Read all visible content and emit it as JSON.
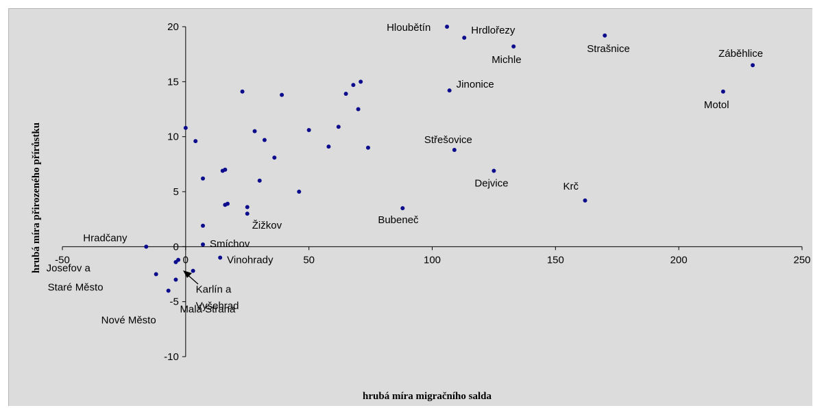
{
  "chart_data": {
    "type": "scatter",
    "title": "",
    "xlabel": "hrubá míra migračního salda",
    "ylabel": "hrubá míra přirozeného přírůstku",
    "xlim": [
      -50,
      250
    ],
    "ylim": [
      -10,
      20
    ],
    "x_ticks": [
      -50,
      0,
      50,
      100,
      150,
      200,
      250
    ],
    "y_ticks": [
      -10,
      -5,
      0,
      5,
      10,
      15,
      20
    ],
    "grid": false,
    "legend": "none",
    "marker_color": "#0c0c8c",
    "points": [
      {
        "x": 106,
        "y": 20,
        "label": "Hloubětín"
      },
      {
        "x": 113,
        "y": 19,
        "label": "Hrdlořezy"
      },
      {
        "x": 133,
        "y": 18.2,
        "label": "Michle"
      },
      {
        "x": 170,
        "y": 19.2,
        "label": "Strašnice"
      },
      {
        "x": 230,
        "y": 16.5,
        "label": "Záběhlice"
      },
      {
        "x": 218,
        "y": 14.1,
        "label": "Motol"
      },
      {
        "x": 107,
        "y": 14.2,
        "label": "Jinonice"
      },
      {
        "x": 109,
        "y": 8.8,
        "label": "Střešovice"
      },
      {
        "x": 125,
        "y": 6.9,
        "label": "Dejvice"
      },
      {
        "x": 162,
        "y": 4.2,
        "label": "Krč"
      },
      {
        "x": 88,
        "y": 3.5,
        "label": "Bubeneč"
      },
      {
        "x": 25,
        "y": 3.0,
        "label": "Žižkov"
      },
      {
        "x": 7,
        "y": 0.2,
        "label": "Smíchov"
      },
      {
        "x": -16,
        "y": 0,
        "label": "Hradčany"
      },
      {
        "x": 14,
        "y": -1,
        "label": "Vinohrady"
      },
      {
        "x": -12,
        "y": -2.5,
        "label": "Josefov a Staré Město"
      },
      {
        "x": 3,
        "y": -2.2,
        "label": "Karlín a Vyšehrad"
      },
      {
        "x": -7,
        "y": -4,
        "label": "Nové Město"
      },
      {
        "x": -4,
        "y": -3,
        "label": "Malá Strana"
      },
      {
        "x": 0,
        "y": 10.8
      },
      {
        "x": 4,
        "y": 9.6
      },
      {
        "x": 7,
        "y": 6.2
      },
      {
        "x": 7,
        "y": 1.9
      },
      {
        "x": 15,
        "y": 6.9
      },
      {
        "x": 16,
        "y": 7.0
      },
      {
        "x": 16,
        "y": 3.8
      },
      {
        "x": 17,
        "y": 3.9
      },
      {
        "x": 23,
        "y": 14.1
      },
      {
        "x": 28,
        "y": 10.5
      },
      {
        "x": 30,
        "y": 6.0
      },
      {
        "x": 32,
        "y": 9.7
      },
      {
        "x": 25,
        "y": 3.6
      },
      {
        "x": 36,
        "y": 8.1
      },
      {
        "x": 39,
        "y": 13.8
      },
      {
        "x": 46,
        "y": 5.0
      },
      {
        "x": 50,
        "y": 10.6
      },
      {
        "x": 58,
        "y": 9.1
      },
      {
        "x": 62,
        "y": 10.9
      },
      {
        "x": 65,
        "y": 13.9
      },
      {
        "x": 68,
        "y": 14.7
      },
      {
        "x": 70,
        "y": 12.5
      },
      {
        "x": 71,
        "y": 15.0
      },
      {
        "x": 74,
        "y": 9.0
      },
      {
        "x": -4,
        "y": -1.4
      },
      {
        "x": -3,
        "y": -1.2
      }
    ]
  }
}
